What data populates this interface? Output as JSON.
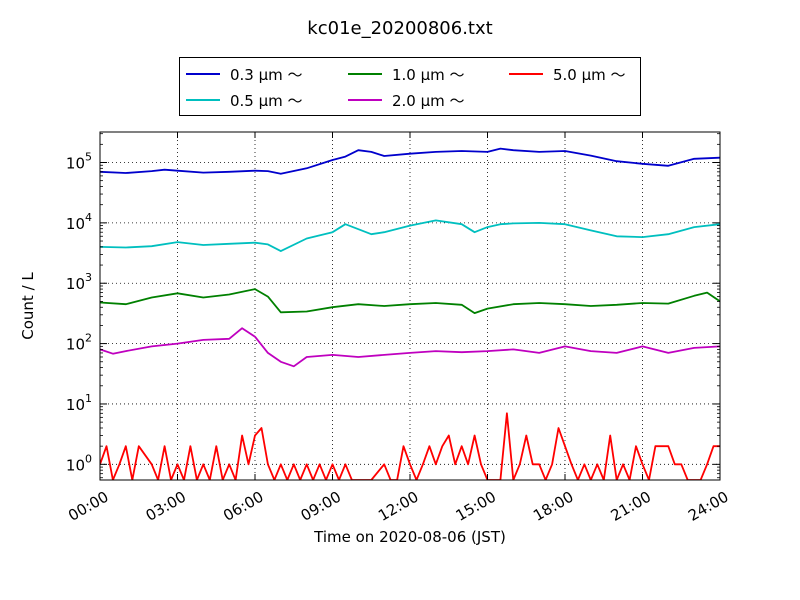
{
  "chart_data": {
    "type": "line",
    "title": "kc01e_20200806.txt",
    "xlabel": "Time on 2020-08-06 (JST)",
    "ylabel": "Count / L",
    "yscale": "log",
    "ylim": [
      0.55,
      320000
    ],
    "xlim": [
      "00:00",
      "24:00"
    ],
    "xticks": [
      "00:00",
      "03:00",
      "06:00",
      "09:00",
      "12:00",
      "15:00",
      "18:00",
      "21:00",
      "24:00"
    ],
    "yticks": [
      {
        "base": "10",
        "exp": "0",
        "value": 1
      },
      {
        "base": "10",
        "exp": "1",
        "value": 10
      },
      {
        "base": "10",
        "exp": "2",
        "value": 100
      },
      {
        "base": "10",
        "exp": "3",
        "value": 1000
      },
      {
        "base": "10",
        "exp": "4",
        "value": 10000
      },
      {
        "base": "10",
        "exp": "5",
        "value": 100000
      }
    ],
    "grid": true,
    "legend_position": "top-center",
    "series": [
      {
        "name": "0.3 μm ～",
        "color": "#0000cc",
        "points": [
          [
            "00:00",
            70000
          ],
          [
            "01:00",
            67000
          ],
          [
            "02:00",
            72000
          ],
          [
            "02:30",
            76000
          ],
          [
            "03:00",
            73000
          ],
          [
            "04:00",
            68000
          ],
          [
            "05:00",
            70000
          ],
          [
            "06:00",
            73000
          ],
          [
            "06:30",
            72000
          ],
          [
            "07:00",
            65000
          ],
          [
            "08:00",
            80000
          ],
          [
            "09:00",
            110000
          ],
          [
            "09:30",
            125000
          ],
          [
            "10:00",
            160000
          ],
          [
            "10:30",
            150000
          ],
          [
            "11:00",
            128000
          ],
          [
            "12:00",
            140000
          ],
          [
            "13:00",
            150000
          ],
          [
            "14:00",
            155000
          ],
          [
            "15:00",
            150000
          ],
          [
            "15:30",
            170000
          ],
          [
            "16:00",
            160000
          ],
          [
            "17:00",
            150000
          ],
          [
            "18:00",
            155000
          ],
          [
            "19:00",
            130000
          ],
          [
            "20:00",
            105000
          ],
          [
            "21:00",
            95000
          ],
          [
            "22:00",
            88000
          ],
          [
            "23:00",
            115000
          ],
          [
            "24:00",
            120000
          ]
        ]
      },
      {
        "name": "0.5 μm ～",
        "color": "#00bfbf",
        "points": [
          [
            "00:00",
            4000
          ],
          [
            "01:00",
            3900
          ],
          [
            "02:00",
            4100
          ],
          [
            "03:00",
            4800
          ],
          [
            "04:00",
            4300
          ],
          [
            "05:00",
            4500
          ],
          [
            "06:00",
            4700
          ],
          [
            "06:30",
            4400
          ],
          [
            "07:00",
            3400
          ],
          [
            "08:00",
            5500
          ],
          [
            "09:00",
            7000
          ],
          [
            "09:30",
            9500
          ],
          [
            "10:30",
            6500
          ],
          [
            "11:00",
            7000
          ],
          [
            "12:00",
            9000
          ],
          [
            "13:00",
            11000
          ],
          [
            "14:00",
            9500
          ],
          [
            "14:30",
            7000
          ],
          [
            "15:00",
            8500
          ],
          [
            "15:30",
            9500
          ],
          [
            "16:00",
            9800
          ],
          [
            "17:00",
            10000
          ],
          [
            "18:00",
            9500
          ],
          [
            "19:00",
            7500
          ],
          [
            "20:00",
            6000
          ],
          [
            "21:00",
            5800
          ],
          [
            "22:00",
            6500
          ],
          [
            "23:00",
            8500
          ],
          [
            "24:00",
            9500
          ]
        ]
      },
      {
        "name": "1.0 μm ～",
        "color": "#008000",
        "points": [
          [
            "00:00",
            480
          ],
          [
            "01:00",
            450
          ],
          [
            "02:00",
            580
          ],
          [
            "03:00",
            680
          ],
          [
            "04:00",
            580
          ],
          [
            "05:00",
            650
          ],
          [
            "06:00",
            800
          ],
          [
            "06:30",
            600
          ],
          [
            "07:00",
            330
          ],
          [
            "08:00",
            340
          ],
          [
            "09:00",
            400
          ],
          [
            "10:00",
            450
          ],
          [
            "11:00",
            420
          ],
          [
            "12:00",
            450
          ],
          [
            "13:00",
            470
          ],
          [
            "14:00",
            440
          ],
          [
            "14:30",
            320
          ],
          [
            "15:00",
            380
          ],
          [
            "16:00",
            450
          ],
          [
            "17:00",
            470
          ],
          [
            "18:00",
            450
          ],
          [
            "19:00",
            420
          ],
          [
            "20:00",
            440
          ],
          [
            "21:00",
            470
          ],
          [
            "22:00",
            460
          ],
          [
            "23:00",
            620
          ],
          [
            "23:30",
            700
          ],
          [
            "24:00",
            500
          ]
        ]
      },
      {
        "name": "2.0 μm ～",
        "color": "#bf00bf",
        "points": [
          [
            "00:00",
            80
          ],
          [
            "00:30",
            68
          ],
          [
            "01:00",
            75
          ],
          [
            "02:00",
            90
          ],
          [
            "03:00",
            100
          ],
          [
            "04:00",
            115
          ],
          [
            "05:00",
            120
          ],
          [
            "05:30",
            180
          ],
          [
            "06:00",
            130
          ],
          [
            "06:30",
            70
          ],
          [
            "07:00",
            50
          ],
          [
            "07:30",
            42
          ],
          [
            "08:00",
            60
          ],
          [
            "09:00",
            65
          ],
          [
            "10:00",
            60
          ],
          [
            "11:00",
            65
          ],
          [
            "12:00",
            70
          ],
          [
            "13:00",
            75
          ],
          [
            "14:00",
            72
          ],
          [
            "15:00",
            75
          ],
          [
            "16:00",
            80
          ],
          [
            "17:00",
            70
          ],
          [
            "18:00",
            90
          ],
          [
            "19:00",
            75
          ],
          [
            "20:00",
            70
          ],
          [
            "21:00",
            90
          ],
          [
            "22:00",
            70
          ],
          [
            "23:00",
            85
          ],
          [
            "24:00",
            90
          ]
        ]
      },
      {
        "name": "5.0 μm ～",
        "color": "#ff0000",
        "points": [
          [
            "00:00",
            1.0
          ],
          [
            "00:15",
            2.0
          ],
          [
            "00:30",
            0.5
          ],
          [
            "00:45",
            1.0
          ],
          [
            "01:00",
            2.0
          ],
          [
            "01:15",
            0.5
          ],
          [
            "01:30",
            2.0
          ],
          [
            "02:00",
            1.0
          ],
          [
            "02:15",
            0.5
          ],
          [
            "02:30",
            2.0
          ],
          [
            "02:45",
            0.5
          ],
          [
            "03:00",
            1.0
          ],
          [
            "03:15",
            0.5
          ],
          [
            "03:30",
            2.0
          ],
          [
            "03:45",
            0.5
          ],
          [
            "04:00",
            1.0
          ],
          [
            "04:15",
            0.5
          ],
          [
            "04:30",
            2.0
          ],
          [
            "04:45",
            0.5
          ],
          [
            "05:00",
            1.0
          ],
          [
            "05:15",
            0.5
          ],
          [
            "05:30",
            3.0
          ],
          [
            "05:45",
            1.0
          ],
          [
            "06:00",
            3.0
          ],
          [
            "06:15",
            4.0
          ],
          [
            "06:30",
            1.0
          ],
          [
            "06:45",
            0.5
          ],
          [
            "07:00",
            1.0
          ],
          [
            "07:15",
            0.5
          ],
          [
            "07:30",
            1.0
          ],
          [
            "07:45",
            0.5
          ],
          [
            "08:00",
            1.0
          ],
          [
            "08:15",
            0.5
          ],
          [
            "08:30",
            1.0
          ],
          [
            "08:45",
            0.5
          ],
          [
            "09:00",
            1.0
          ],
          [
            "09:15",
            0.5
          ],
          [
            "09:30",
            1.0
          ],
          [
            "09:45",
            0.5
          ],
          [
            "10:00",
            0.5
          ],
          [
            "10:30",
            0.5
          ],
          [
            "11:00",
            1.0
          ],
          [
            "11:15",
            0.5
          ],
          [
            "11:30",
            0.5
          ],
          [
            "11:45",
            2.0
          ],
          [
            "12:00",
            1.0
          ],
          [
            "12:15",
            0.5
          ],
          [
            "12:30",
            1.0
          ],
          [
            "12:45",
            2.0
          ],
          [
            "13:00",
            1.0
          ],
          [
            "13:15",
            2.0
          ],
          [
            "13:30",
            3.0
          ],
          [
            "13:45",
            1.0
          ],
          [
            "14:00",
            2.0
          ],
          [
            "14:15",
            1.0
          ],
          [
            "14:30",
            3.0
          ],
          [
            "14:45",
            1.0
          ],
          [
            "15:00",
            0.5
          ],
          [
            "15:30",
            0.5
          ],
          [
            "15:45",
            7.0
          ],
          [
            "16:00",
            0.5
          ],
          [
            "16:15",
            1.0
          ],
          [
            "16:30",
            3.0
          ],
          [
            "16:45",
            1.0
          ],
          [
            "17:00",
            1.0
          ],
          [
            "17:15",
            0.5
          ],
          [
            "17:30",
            1.0
          ],
          [
            "17:45",
            4.0
          ],
          [
            "18:00",
            2.0
          ],
          [
            "18:15",
            1.0
          ],
          [
            "18:30",
            0.5
          ],
          [
            "18:45",
            1.0
          ],
          [
            "19:00",
            0.5
          ],
          [
            "19:15",
            1.0
          ],
          [
            "19:30",
            0.5
          ],
          [
            "19:45",
            3.0
          ],
          [
            "20:00",
            0.5
          ],
          [
            "20:15",
            1.0
          ],
          [
            "20:30",
            0.5
          ],
          [
            "20:45",
            2.0
          ],
          [
            "21:00",
            1.0
          ],
          [
            "21:15",
            0.5
          ],
          [
            "21:30",
            2.0
          ],
          [
            "21:45",
            2.0
          ],
          [
            "22:00",
            2.0
          ],
          [
            "22:15",
            1.0
          ],
          [
            "22:30",
            1.0
          ],
          [
            "22:45",
            0.5
          ],
          [
            "23:15",
            0.5
          ],
          [
            "23:30",
            1.0
          ],
          [
            "23:45",
            2.0
          ],
          [
            "24:00",
            2.0
          ]
        ]
      }
    ]
  }
}
